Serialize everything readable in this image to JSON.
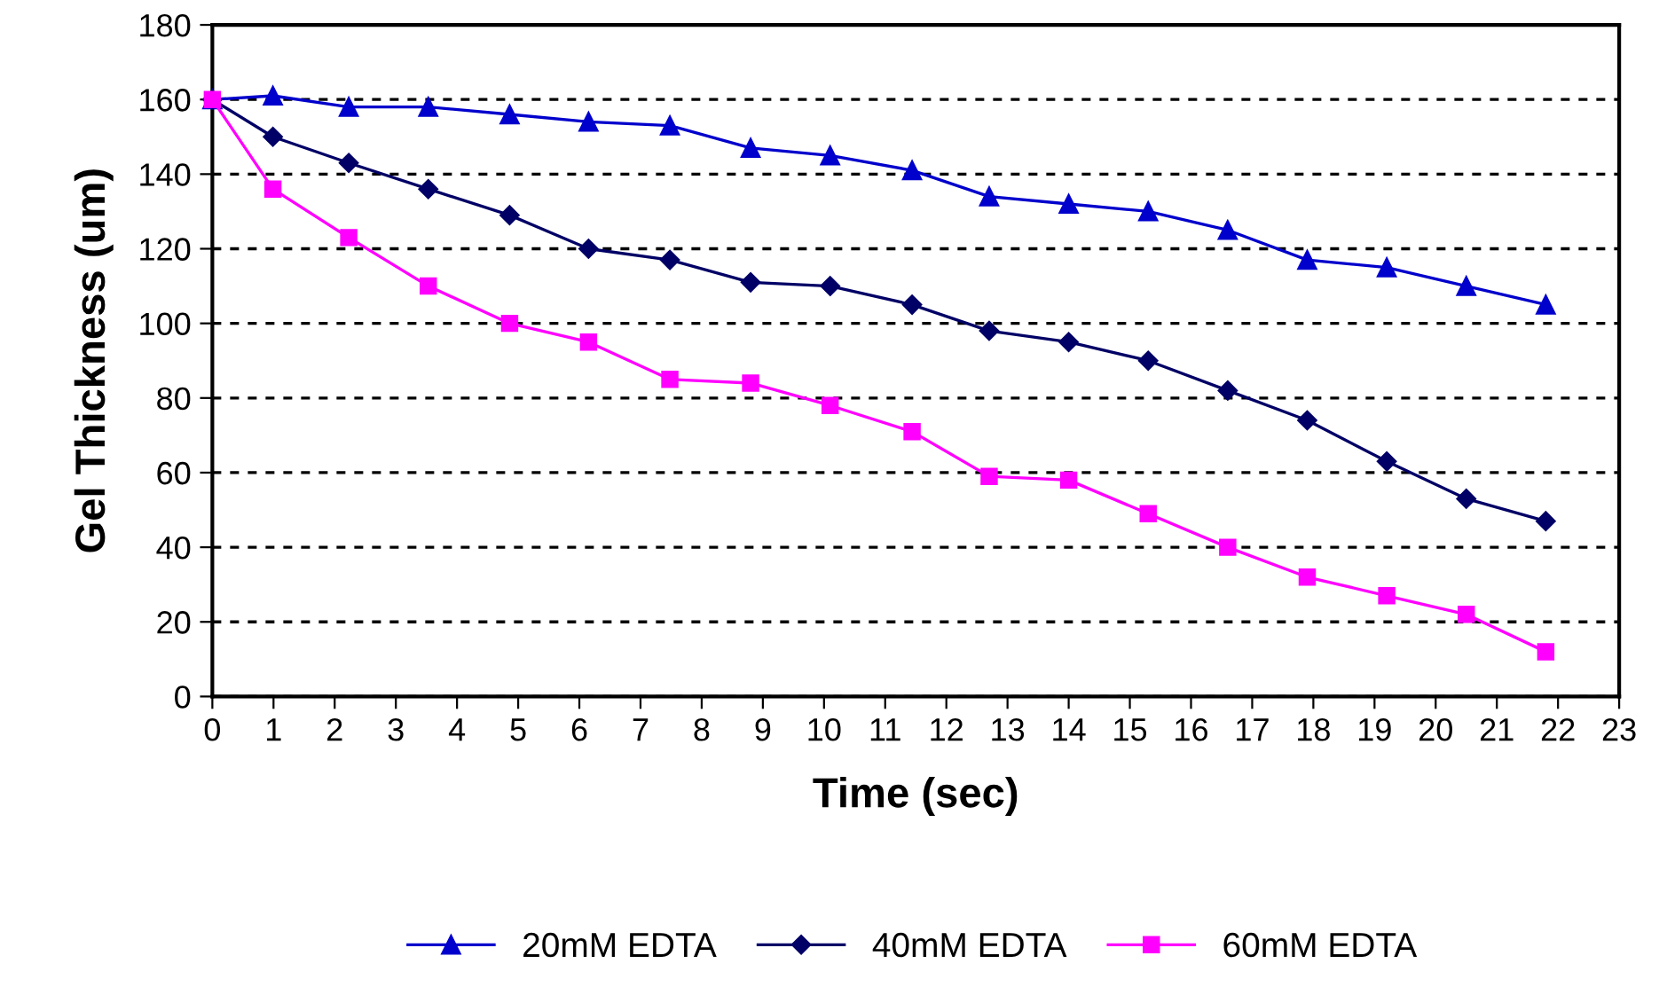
{
  "chart_data": {
    "type": "line",
    "xlabel": "Time (sec)",
    "ylabel": "Gel Thickness (um)",
    "x": [
      0,
      0.99,
      2.23,
      3.53,
      4.86,
      6.15,
      7.48,
      8.8,
      10.1,
      11.44,
      12.7,
      14.0,
      15.3,
      16.6,
      17.9,
      19.2,
      20.5,
      21.8
    ],
    "series": [
      {
        "name": "20mM EDTA",
        "color": "#0000cc",
        "marker": "triangle",
        "values": [
          160,
          161,
          158,
          158,
          156,
          154,
          153,
          147,
          145,
          141,
          134,
          132,
          130,
          125,
          117,
          115,
          110,
          105
        ]
      },
      {
        "name": "40mM EDTA",
        "color": "#000066",
        "marker": "diamond",
        "values": [
          160,
          150,
          143,
          136,
          129,
          120,
          117,
          111,
          110,
          105,
          98,
          95,
          90,
          82,
          74,
          63,
          53,
          47
        ]
      },
      {
        "name": "60mM EDTA",
        "color": "#ff00ff",
        "marker": "square",
        "values": [
          160,
          136,
          123,
          110,
          100,
          95,
          85,
          84,
          78,
          71,
          59,
          58,
          49,
          40,
          32,
          27,
          22,
          12
        ]
      }
    ],
    "xlim": [
      0,
      23
    ],
    "xticks": [
      0,
      1,
      2,
      3,
      4,
      5,
      6,
      7,
      8,
      9,
      10,
      11,
      12,
      13,
      14,
      15,
      16,
      17,
      18,
      19,
      20,
      21,
      22,
      23
    ],
    "ylim": [
      0,
      180
    ],
    "yticks": [
      0,
      20,
      40,
      60,
      80,
      100,
      120,
      140,
      160,
      180
    ],
    "grid": "y",
    "legend": "bottom"
  }
}
